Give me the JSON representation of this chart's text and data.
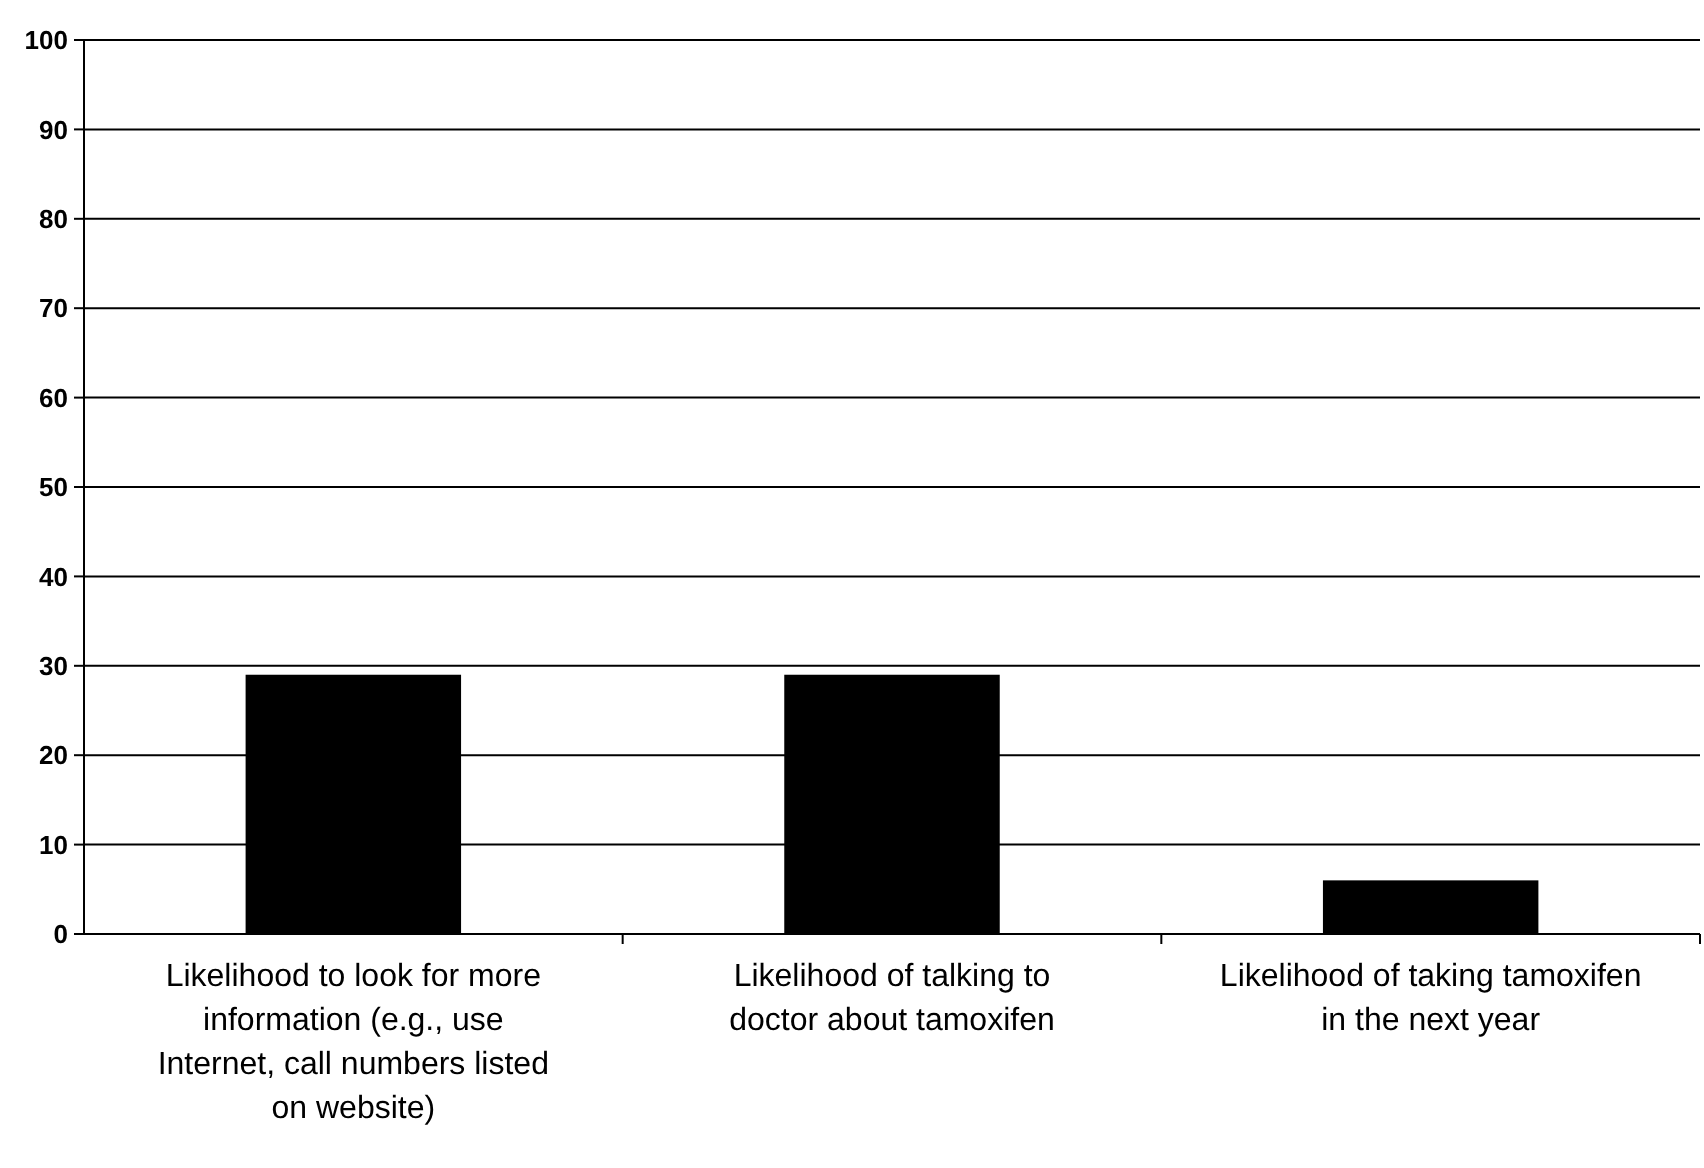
{
  "chart_data": {
    "type": "bar",
    "categories": [
      "Likelihood to look for more information (e.g., use Internet, call numbers listed on website)",
      "Likelihood of talking to doctor about tamoxifen",
      "Likelihood of taking tamoxifen in the next year"
    ],
    "values": [
      29,
      29,
      6
    ],
    "color": "#000000",
    "ylim": [
      0,
      100
    ],
    "yticks": [
      0,
      10,
      20,
      30,
      40,
      50,
      60,
      70,
      80,
      90,
      100
    ],
    "grid": "y"
  }
}
